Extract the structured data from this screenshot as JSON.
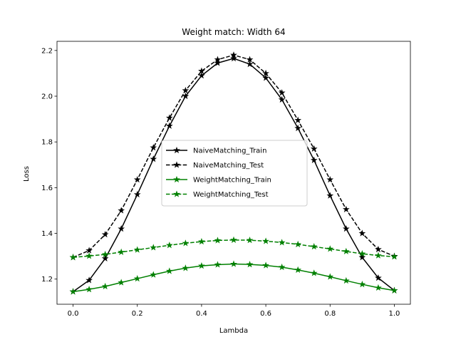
{
  "chart_data": {
    "type": "line",
    "title": "Weight match: Width 64",
    "xlabel": "Lambda",
    "ylabel": "Loss",
    "xlim": [
      -0.05,
      1.05
    ],
    "ylim": [
      1.09,
      2.24
    ],
    "xticks": [
      0.0,
      0.2,
      0.4,
      0.6,
      0.8,
      1.0
    ],
    "xtick_labels": [
      "0.0",
      "0.2",
      "0.4",
      "0.6",
      "0.8",
      "1.0"
    ],
    "yticks": [
      1.2,
      1.4,
      1.6,
      1.8,
      2.0,
      2.2
    ],
    "ytick_labels": [
      "1.2",
      "1.4",
      "1.6",
      "1.8",
      "2.0",
      "2.2"
    ],
    "grid": false,
    "legend_position": "center",
    "x": [
      0.0,
      0.05,
      0.1,
      0.15,
      0.2,
      0.25,
      0.3,
      0.35,
      0.4,
      0.45,
      0.5,
      0.55,
      0.6,
      0.65,
      0.7,
      0.75,
      0.8,
      0.85,
      0.9,
      0.95,
      1.0
    ],
    "series": [
      {
        "name": "NaiveMatching_Train",
        "color": "#000000",
        "linestyle": "solid",
        "marker": "star",
        "values": [
          1.145,
          1.195,
          1.29,
          1.42,
          1.57,
          1.725,
          1.87,
          2.0,
          2.09,
          2.145,
          2.165,
          2.14,
          2.08,
          1.985,
          1.86,
          1.72,
          1.565,
          1.42,
          1.295,
          1.205,
          1.15
        ]
      },
      {
        "name": "NaiveMatching_Test",
        "color": "#000000",
        "linestyle": "dashed",
        "marker": "star",
        "values": [
          1.295,
          1.325,
          1.395,
          1.5,
          1.635,
          1.775,
          1.905,
          2.025,
          2.11,
          2.16,
          2.18,
          2.16,
          2.1,
          2.015,
          1.895,
          1.77,
          1.635,
          1.505,
          1.4,
          1.33,
          1.3
        ]
      },
      {
        "name": "WeightMatching_Train",
        "color": "#008000",
        "linestyle": "solid",
        "marker": "star",
        "values": [
          1.145,
          1.155,
          1.168,
          1.185,
          1.202,
          1.219,
          1.235,
          1.248,
          1.258,
          1.263,
          1.266,
          1.264,
          1.26,
          1.252,
          1.24,
          1.226,
          1.21,
          1.193,
          1.177,
          1.162,
          1.15
        ]
      },
      {
        "name": "WeightMatching_Test",
        "color": "#008000",
        "linestyle": "dashed",
        "marker": "star",
        "values": [
          1.295,
          1.301,
          1.308,
          1.318,
          1.328,
          1.338,
          1.348,
          1.357,
          1.364,
          1.369,
          1.371,
          1.37,
          1.366,
          1.36,
          1.352,
          1.342,
          1.332,
          1.321,
          1.311,
          1.303,
          1.298
        ]
      }
    ]
  }
}
